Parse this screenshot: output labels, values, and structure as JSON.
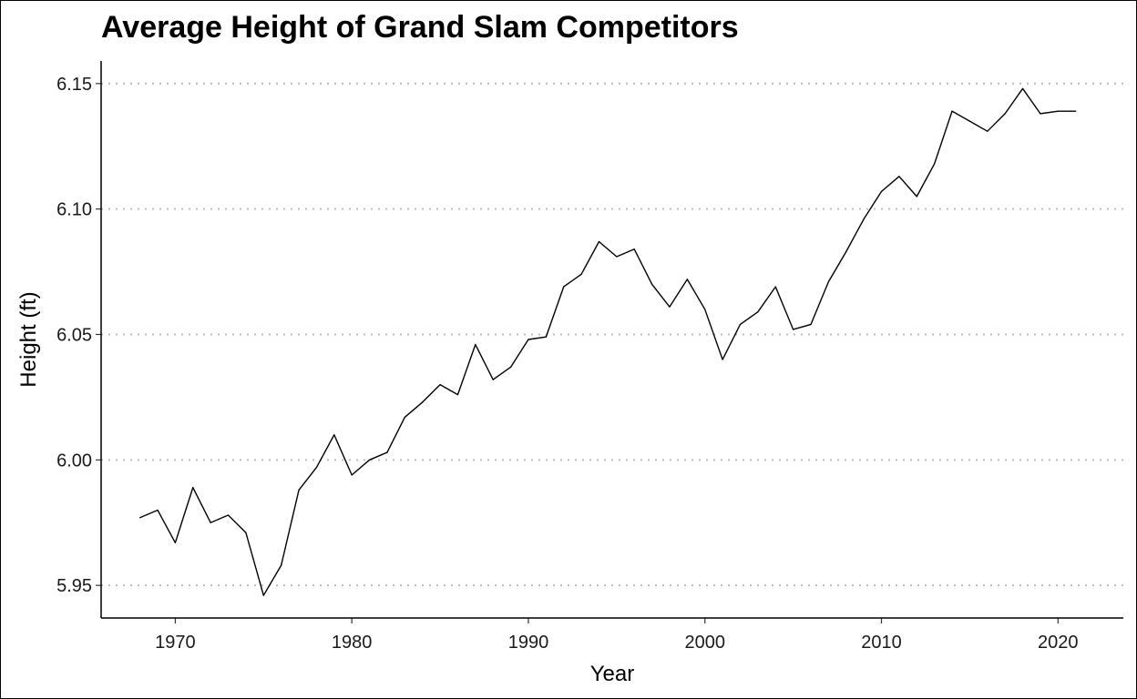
{
  "chart_data": {
    "type": "line",
    "title": "Average Height of Grand Slam Competitors",
    "xlabel": "Year",
    "ylabel": "Height (ft)",
    "xlim": [
      1965.8,
      2023.7
    ],
    "ylim": [
      5.937,
      6.159
    ],
    "x_ticks": [
      1970,
      1980,
      1990,
      2000,
      2010,
      2020
    ],
    "x_tick_labels": [
      "1970",
      "1980",
      "1990",
      "2000",
      "2010",
      "2020"
    ],
    "y_ticks": [
      5.95,
      6.0,
      6.05,
      6.1,
      6.15
    ],
    "y_tick_labels": [
      "5.95",
      "6.00",
      "6.05",
      "6.10",
      "6.15"
    ],
    "grid": "horizontal-dotted",
    "legend": "none",
    "series": [
      {
        "name": "Average height",
        "color": "#000000",
        "x": [
          1968,
          1969,
          1970,
          1971,
          1972,
          1973,
          1974,
          1975,
          1976,
          1977,
          1978,
          1979,
          1980,
          1981,
          1982,
          1983,
          1984,
          1985,
          1986,
          1987,
          1988,
          1989,
          1990,
          1991,
          1992,
          1993,
          1994,
          1995,
          1996,
          1997,
          1998,
          1999,
          2000,
          2001,
          2002,
          2003,
          2004,
          2005,
          2006,
          2007,
          2008,
          2009,
          2010,
          2011,
          2012,
          2013,
          2014,
          2015,
          2016,
          2017,
          2018,
          2019,
          2020,
          2021
        ],
        "values": [
          5.977,
          5.98,
          5.967,
          5.989,
          5.975,
          5.978,
          5.971,
          5.946,
          5.958,
          5.988,
          5.997,
          6.01,
          5.994,
          6.0,
          6.003,
          6.017,
          6.023,
          6.03,
          6.026,
          6.046,
          6.032,
          6.037,
          6.048,
          6.049,
          6.069,
          6.074,
          6.087,
          6.081,
          6.084,
          6.07,
          6.061,
          6.072,
          6.06,
          6.04,
          6.054,
          6.059,
          6.069,
          6.052,
          6.054,
          6.071,
          6.083,
          6.096,
          6.107,
          6.113,
          6.105,
          6.118,
          6.139,
          6.135,
          6.131,
          6.138,
          6.148,
          6.138,
          6.139,
          6.139
        ]
      }
    ]
  }
}
